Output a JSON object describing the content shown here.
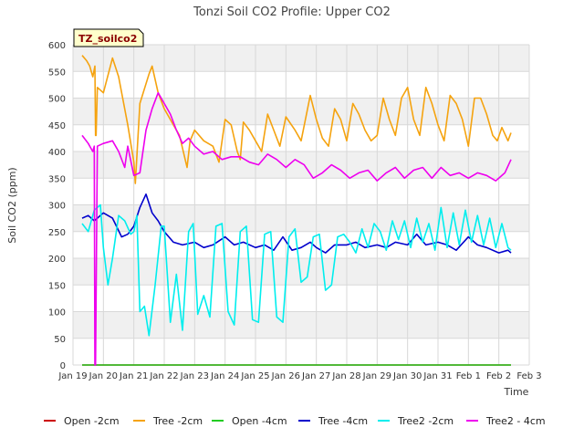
{
  "chart_data": {
    "type": "line",
    "title": "Tonzi Soil CO2 Profile: Upper CO2",
    "xlabel": "Time",
    "ylabel": "Soil CO2 (ppm)",
    "badge": "TZ_soilco2",
    "ylim": [
      0,
      600
    ],
    "yticks": [
      0,
      50,
      100,
      150,
      200,
      250,
      300,
      350,
      400,
      450,
      500,
      550,
      600
    ],
    "xlim": [
      0,
      15
    ],
    "xticks": [
      {
        "v": 0,
        "label": "Jan 19"
      },
      {
        "v": 1,
        "label": "Jan 20"
      },
      {
        "v": 2,
        "label": "Jan 21"
      },
      {
        "v": 3,
        "label": "Jan 22"
      },
      {
        "v": 4,
        "label": "Jan 23"
      },
      {
        "v": 5,
        "label": "Jan 24"
      },
      {
        "v": 6,
        "label": "Jan 25"
      },
      {
        "v": 7,
        "label": "Jan 26"
      },
      {
        "v": 8,
        "label": "Jan 27"
      },
      {
        "v": 9,
        "label": "Jan 28"
      },
      {
        "v": 10,
        "label": "Jan 29"
      },
      {
        "v": 11,
        "label": "Jan 30"
      },
      {
        "v": 12,
        "label": "Jan 31"
      },
      {
        "v": 13,
        "label": "Feb 1"
      },
      {
        "v": 14,
        "label": "Feb 2"
      },
      {
        "v": 15,
        "label": "Feb 3"
      }
    ],
    "grid": true,
    "legend_position": "bottom",
    "series": [
      {
        "name": "Open -2cm",
        "color": "#cc0000",
        "x": [
          0.3,
          14.4
        ],
        "y": [
          0,
          0
        ]
      },
      {
        "name": "Tree -2cm",
        "color": "#f5a30f",
        "x": [
          0.3,
          0.45,
          0.55,
          0.65,
          0.72,
          0.74,
          0.76,
          0.8,
          1.0,
          1.3,
          1.5,
          1.8,
          2.0,
          2.05,
          2.2,
          2.5,
          2.6,
          2.8,
          3.0,
          3.3,
          3.5,
          3.75,
          3.85,
          4.0,
          4.3,
          4.6,
          4.8,
          5.0,
          5.2,
          5.4,
          5.5,
          5.6,
          5.8,
          6.0,
          6.2,
          6.4,
          6.6,
          6.8,
          7.0,
          7.3,
          7.5,
          7.8,
          8.0,
          8.2,
          8.4,
          8.6,
          8.8,
          9.0,
          9.2,
          9.4,
          9.6,
          9.8,
          10.0,
          10.2,
          10.4,
          10.6,
          10.8,
          11.0,
          11.2,
          11.4,
          11.6,
          11.8,
          12.0,
          12.2,
          12.4,
          12.6,
          12.8,
          13.0,
          13.2,
          13.4,
          13.6,
          13.8,
          13.95,
          14.1,
          14.3,
          14.4
        ],
        "y": [
          580,
          570,
          560,
          540,
          560,
          430,
          430,
          520,
          510,
          575,
          540,
          450,
          380,
          340,
          490,
          545,
          560,
          510,
          480,
          450,
          430,
          370,
          420,
          440,
          420,
          410,
          380,
          460,
          450,
          400,
          385,
          455,
          440,
          420,
          400,
          470,
          440,
          410,
          465,
          440,
          420,
          505,
          460,
          425,
          410,
          480,
          460,
          420,
          490,
          470,
          440,
          420,
          430,
          500,
          460,
          430,
          500,
          520,
          460,
          430,
          520,
          490,
          450,
          420,
          505,
          490,
          460,
          410,
          500,
          500,
          470,
          430,
          420,
          445,
          420,
          435
        ]
      },
      {
        "name": "Open -4cm",
        "color": "#22cc22",
        "x": [
          0.3,
          14.4
        ],
        "y": [
          0,
          0
        ]
      },
      {
        "name": "Tree -4cm",
        "color": "#0000cc",
        "x": [
          0.3,
          0.5,
          0.7,
          1.0,
          1.3,
          1.6,
          1.8,
          2.0,
          2.2,
          2.4,
          2.6,
          2.8,
          3.0,
          3.3,
          3.6,
          4.0,
          4.3,
          4.6,
          5.0,
          5.3,
          5.6,
          6.0,
          6.3,
          6.6,
          6.9,
          7.2,
          7.5,
          7.8,
          8.0,
          8.3,
          8.6,
          9.0,
          9.3,
          9.6,
          10.0,
          10.3,
          10.6,
          11.0,
          11.3,
          11.6,
          12.0,
          12.3,
          12.6,
          13.0,
          13.3,
          13.6,
          14.0,
          14.3,
          14.4
        ],
        "y": [
          275,
          280,
          270,
          285,
          275,
          240,
          245,
          260,
          295,
          320,
          285,
          270,
          250,
          230,
          225,
          230,
          220,
          225,
          240,
          225,
          230,
          220,
          225,
          215,
          240,
          215,
          220,
          230,
          220,
          210,
          225,
          225,
          230,
          220,
          225,
          220,
          230,
          225,
          245,
          225,
          230,
          225,
          215,
          240,
          225,
          220,
          210,
          215,
          210
        ]
      },
      {
        "name": "Tree2 -2cm",
        "color": "#00eeee",
        "x": [
          0.3,
          0.5,
          0.7,
          0.9,
          1.0,
          1.15,
          1.3,
          1.5,
          1.7,
          1.9,
          2.0,
          2.1,
          2.2,
          2.35,
          2.5,
          2.7,
          2.9,
          3.0,
          3.2,
          3.4,
          3.6,
          3.8,
          3.95,
          4.1,
          4.3,
          4.5,
          4.7,
          4.9,
          5.1,
          5.3,
          5.5,
          5.7,
          5.9,
          6.1,
          6.3,
          6.5,
          6.7,
          6.9,
          7.1,
          7.3,
          7.5,
          7.7,
          7.9,
          8.1,
          8.3,
          8.5,
          8.7,
          8.9,
          9.1,
          9.3,
          9.5,
          9.7,
          9.9,
          10.1,
          10.3,
          10.5,
          10.7,
          10.9,
          11.1,
          11.3,
          11.5,
          11.7,
          11.9,
          12.1,
          12.3,
          12.5,
          12.7,
          12.9,
          13.1,
          13.3,
          13.5,
          13.7,
          13.9,
          14.1,
          14.3,
          14.4
        ],
        "y": [
          265,
          250,
          290,
          300,
          220,
          150,
          200,
          280,
          270,
          245,
          250,
          280,
          100,
          110,
          55,
          150,
          260,
          260,
          80,
          170,
          65,
          250,
          265,
          95,
          130,
          90,
          260,
          265,
          100,
          75,
          250,
          260,
          85,
          80,
          245,
          250,
          90,
          80,
          240,
          255,
          155,
          165,
          240,
          245,
          140,
          150,
          240,
          245,
          230,
          210,
          255,
          220,
          265,
          250,
          215,
          270,
          235,
          270,
          220,
          275,
          230,
          265,
          215,
          295,
          220,
          285,
          225,
          290,
          230,
          280,
          225,
          275,
          220,
          265,
          220,
          215
        ]
      },
      {
        "name": "Tree2 - 4cm",
        "color": "#ee00ee",
        "x": [
          0.3,
          0.5,
          0.6,
          0.65,
          0.7,
          0.72,
          0.74,
          0.8,
          1.0,
          1.3,
          1.5,
          1.7,
          1.8,
          2.0,
          2.2,
          2.4,
          2.6,
          2.8,
          3.0,
          3.2,
          3.4,
          3.6,
          3.8,
          4.0,
          4.3,
          4.6,
          4.9,
          5.2,
          5.5,
          5.8,
          6.1,
          6.4,
          6.7,
          7.0,
          7.3,
          7.6,
          7.9,
          8.2,
          8.5,
          8.8,
          9.1,
          9.4,
          9.7,
          10.0,
          10.3,
          10.6,
          10.9,
          11.2,
          11.5,
          11.8,
          12.1,
          12.4,
          12.7,
          13.0,
          13.3,
          13.6,
          13.9,
          14.2,
          14.4
        ],
        "y": [
          430,
          415,
          405,
          400,
          410,
          0,
          0,
          410,
          415,
          420,
          400,
          370,
          410,
          355,
          360,
          440,
          480,
          510,
          490,
          470,
          440,
          415,
          425,
          410,
          395,
          400,
          385,
          390,
          390,
          380,
          375,
          395,
          385,
          370,
          385,
          375,
          350,
          360,
          375,
          365,
          350,
          360,
          365,
          345,
          360,
          370,
          350,
          365,
          370,
          350,
          370,
          355,
          360,
          350,
          360,
          355,
          345,
          360,
          385
        ]
      }
    ]
  },
  "legend": {
    "items": [
      "Open -2cm",
      "Tree -2cm",
      "Open -4cm",
      "Tree -4cm",
      "Tree2 -2cm",
      "Tree2 - 4cm"
    ]
  },
  "colors": {
    "band": "#f0f0f0",
    "grid": "#d8d8d8",
    "badge_fill": "#ffffcc"
  }
}
